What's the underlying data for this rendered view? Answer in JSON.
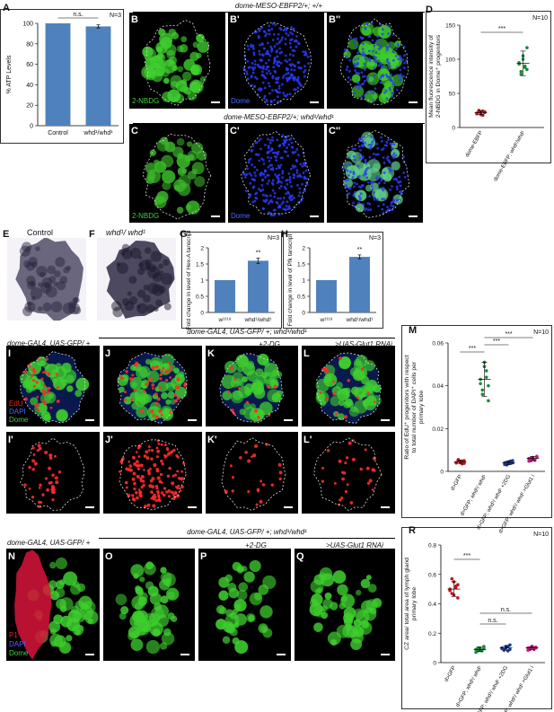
{
  "panel_letters": {
    "A": "A",
    "B": "B",
    "B1": "B'",
    "B2": "B''",
    "C": "C",
    "C1": "C'",
    "C2": "C''",
    "D": "D",
    "E": "E",
    "F": "F",
    "G": "G",
    "H": "H",
    "I": "I",
    "J": "J",
    "K": "K",
    "L": "L",
    "I1": "I'",
    "J1": "J'",
    "K1": "K'",
    "L1": "L'",
    "M": "M",
    "N": "N",
    "O": "O",
    "P": "P",
    "Q": "Q",
    "R": "R"
  },
  "headers": {
    "B_row": "dome-MESO-EBFP2/+; +/+",
    "C_row": "dome-MESO-EBFP2/+; whd¹/whd¹",
    "I_left": "dome-GAL4, UAS-GFP/ +",
    "I_right": "dome-GAL4, UAS-GFP/ +; whd¹/whd¹",
    "K_treat": "+2-DG",
    "L_treat": ">UAS-Glut1 RNAi",
    "N_left": "dome-GAL4, UAS-GFP/ +",
    "N_right": "dome-GAL4, UAS-GFP/ +; whd¹/whd¹",
    "P_treat": "+2-DG",
    "Q_treat": ">UAS-Glut1 RNAi"
  },
  "photo_labels": {
    "E": "Control",
    "F": "whd¹/ whd¹"
  },
  "channels": {
    "nbdg": "2-NBDG",
    "dome": "Dome",
    "edu": "EdU",
    "dapi": "DAPI",
    "p1": "P1"
  },
  "colors": {
    "bar": "#4f81bd",
    "red": "#c0141c",
    "green": "#1e8a3a",
    "blue": "#1f3a93",
    "pink": "#c2187a"
  },
  "chart_data": [
    {
      "id": "A",
      "type": "bar",
      "categories": [
        "Control",
        "whd¹/whd¹"
      ],
      "values": [
        100,
        97
      ],
      "errors": [
        0,
        1.5
      ],
      "ylabel": "% ATP Levels",
      "ylim": [
        0,
        100
      ],
      "yticks": [
        "0",
        "20",
        "40",
        "60",
        "80",
        "100"
      ],
      "n_label": "N=3",
      "significance": "n.s."
    },
    {
      "id": "D",
      "type": "scatter",
      "categories": [
        "dome-EBFP",
        "dome-EBFP; whd¹/whd¹"
      ],
      "series": [
        {
          "values": [
            21,
            23,
            19,
            24,
            22,
            20,
            25,
            22,
            18,
            23
          ],
          "mean": 22,
          "sd": 3
        },
        {
          "values": [
            93,
            82,
            100,
            88,
            117,
            95,
            78,
            105,
            90,
            85
          ],
          "mean": 94,
          "sd": 18
        }
      ],
      "ylabel": "Mean fluorescence intensity of 2-NBDG in Dome⁺ progenitors",
      "ylim": [
        0,
        150
      ],
      "yticks": [
        "0",
        "50",
        "100",
        "150"
      ],
      "n_label": "N=10",
      "significance": "***"
    },
    {
      "id": "G",
      "type": "bar",
      "categories": [
        "w¹¹¹⁸",
        "whd¹/whd¹"
      ],
      "values": [
        1,
        1.6
      ],
      "errors": [
        0,
        0.08
      ],
      "ylabel": "Fold change in level of Hex-A tanscript",
      "ylim": [
        0,
        2
      ],
      "yticks": [
        "0",
        "0.5",
        "1",
        "1.5",
        "2"
      ],
      "n_label": "N=3",
      "significance": "**"
    },
    {
      "id": "H",
      "type": "bar",
      "categories": [
        "w¹¹¹⁸",
        "whd¹/whd¹"
      ],
      "values": [
        1,
        1.72
      ],
      "errors": [
        0,
        0.06
      ],
      "ylabel": "Fold change in level of Pfk tanscript",
      "ylim": [
        0,
        2
      ],
      "yticks": [
        "0",
        "0.5",
        "1",
        "1.5",
        "2"
      ],
      "n_label": "N=3",
      "significance": "**"
    },
    {
      "id": "M",
      "type": "scatter",
      "categories": [
        "d>GFP",
        "d>GFP; whd¹/ whd¹",
        "d>GFP; whd¹/ whd¹ +2DG",
        "d>GFP; whd¹/ whd¹ >Glut1 i"
      ],
      "series": [
        {
          "values": [
            0.004,
            0.005,
            0.0045,
            0.0035,
            0.005,
            0.004,
            0.0055,
            0.0042,
            0.0048,
            0.0038
          ],
          "mean": 0.0045,
          "sd": 0.0008
        },
        {
          "values": [
            0.043,
            0.038,
            0.051,
            0.047,
            0.033,
            0.041,
            0.036,
            0.049,
            0.044,
            0.04
          ],
          "mean": 0.043,
          "sd": 0.008
        },
        {
          "values": [
            0.004,
            0.003,
            0.0045,
            0.0038,
            0.005,
            0.0032,
            0.0042,
            0.0036,
            0.0048,
            0.004
          ],
          "mean": 0.004,
          "sd": 0.0008
        },
        {
          "values": [
            0.006,
            0.005,
            0.0065,
            0.0055,
            0.007,
            0.0048,
            0.0062,
            0.0058,
            0.0052,
            0.0068
          ],
          "mean": 0.006,
          "sd": 0.001
        }
      ],
      "ylabel": "Ratio of EdU⁺ progenitors with respect to total number of DAPI⁺ cells per primary lobe",
      "ylim": [
        0,
        0.06
      ],
      "yticks": [
        "0",
        "0.02",
        "0.04",
        "0.06"
      ],
      "n_label": "N=10",
      "significance": [
        "***",
        "***",
        "***"
      ]
    },
    {
      "id": "R",
      "type": "scatter",
      "categories": [
        "d>GFP",
        "d>GFP; whd¹/ whd¹",
        "d>GFP; whd¹/ whd¹ +2DG",
        "d>GFP; whd¹/ whd¹ >Glut1 i"
      ],
      "series": [
        {
          "values": [
            0.5,
            0.47,
            0.55,
            0.52,
            0.44,
            0.49,
            0.57,
            0.46,
            0.51,
            0.53
          ],
          "mean": 0.5,
          "sd": 0.05
        },
        {
          "values": [
            0.09,
            0.08,
            0.1,
            0.085,
            0.095,
            0.07,
            0.1,
            0.09,
            0.08,
            0.11
          ],
          "mean": 0.09,
          "sd": 0.015
        },
        {
          "values": [
            0.1,
            0.09,
            0.11,
            0.08,
            0.12,
            0.095,
            0.085,
            0.1,
            0.11,
            0.09
          ],
          "mean": 0.1,
          "sd": 0.015
        },
        {
          "values": [
            0.1,
            0.09,
            0.11,
            0.095,
            0.105,
            0.085,
            0.1,
            0.11,
            0.09,
            0.1
          ],
          "mean": 0.1,
          "sd": 0.01
        }
      ],
      "ylabel": "CZ area/ total area of lymph gland primary lobe",
      "ylim": [
        0,
        0.8
      ],
      "yticks": [
        "0",
        "0.2",
        "0.4",
        "0.6",
        "0.8"
      ],
      "n_label": "N=10",
      "significance": [
        "***",
        "n.s.",
        "n.s."
      ]
    }
  ]
}
